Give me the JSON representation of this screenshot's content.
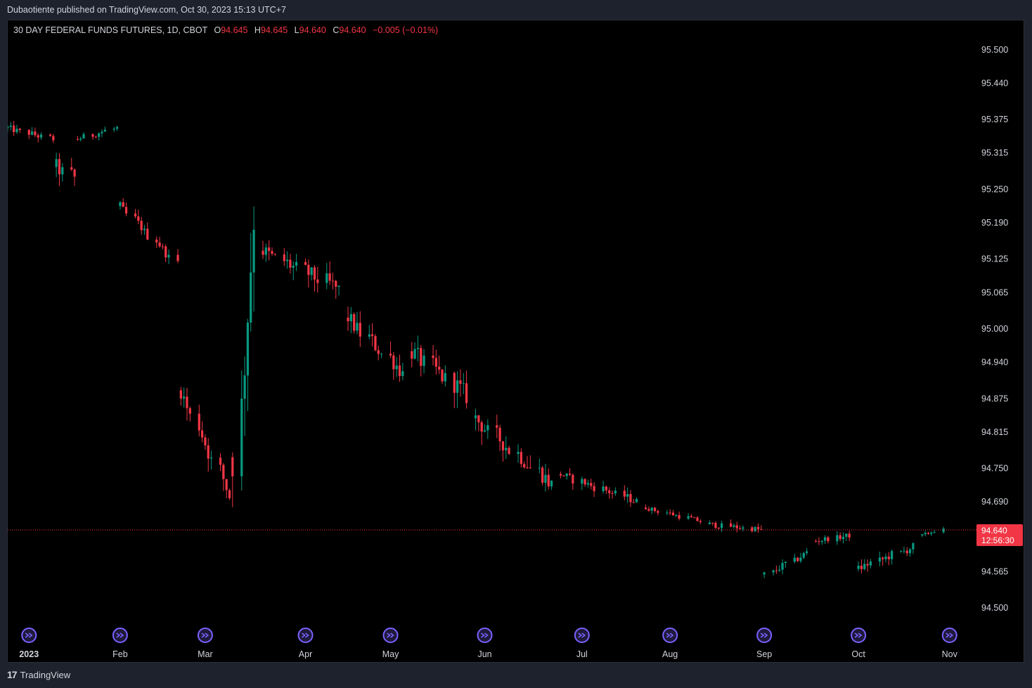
{
  "header": {
    "published_line": "Dubaotiente published on TradingView.com, Oct 30, 2023 15:13 UTC+7"
  },
  "legend": {
    "symbol": "30 DAY FEDERAL FUNDS FUTURES, 1D, CBOT",
    "open_label": "O",
    "open": "94.645",
    "high_label": "H",
    "high": "94.645",
    "low_label": "L",
    "low": "94.640",
    "close_label": "C",
    "close": "94.640",
    "change": "−0.005 (−0.01%)"
  },
  "price_badge": {
    "price": "94.640",
    "countdown": "12:56:30"
  },
  "footer": {
    "logo_glyph": "17",
    "brand": "TradingView"
  },
  "colors": {
    "up": "#089981",
    "down": "#f23645",
    "background": "#000000",
    "axis_text": "#d1d4dc",
    "event_icon": "#7b61ff"
  },
  "chart_data": {
    "type": "candlestick",
    "timeframe": "1D",
    "y_ticks": [
      "95.500",
      "95.440",
      "95.375",
      "95.315",
      "95.250",
      "95.190",
      "95.125",
      "95.065",
      "95.000",
      "94.940",
      "94.875",
      "94.815",
      "94.750",
      "94.690",
      "94.565",
      "94.500"
    ],
    "ylim": [
      94.47,
      95.54
    ],
    "x_ticks": [
      {
        "label": "2023",
        "date": "2023-01-02"
      },
      {
        "label": "Feb",
        "date": "2023-02-01"
      },
      {
        "label": "Mar",
        "date": "2023-03-01"
      },
      {
        "label": "Apr",
        "date": "2023-04-03"
      },
      {
        "label": "May",
        "date": "2023-05-01"
      },
      {
        "label": "Jun",
        "date": "2023-06-01"
      },
      {
        "label": "Jul",
        "date": "2023-07-03"
      },
      {
        "label": "Aug",
        "date": "2023-08-01"
      },
      {
        "label": "Sep",
        "date": "2023-09-01"
      },
      {
        "label": "Oct",
        "date": "2023-10-02"
      },
      {
        "label": "Nov",
        "date": "2023-11-01"
      }
    ],
    "x_range": [
      "2022-12-26",
      "2023-11-08"
    ],
    "event_icons_on": [
      "2023-01-02",
      "2023-02-01",
      "2023-03-01",
      "2023-04-03",
      "2023-05-01",
      "2023-06-01",
      "2023-07-03",
      "2023-08-01",
      "2023-09-01",
      "2023-10-02",
      "2023-11-01"
    ],
    "last_price": 94.64,
    "segments": [
      {
        "start": "2022-12-26",
        "end": "2023-01-10",
        "from": 95.36,
        "to": 95.34,
        "noise": 0.012
      },
      {
        "start": "2023-01-11",
        "end": "2023-01-17",
        "from": 95.29,
        "to": 95.27,
        "noise": 0.03
      },
      {
        "start": "2023-01-18",
        "end": "2023-01-31",
        "from": 95.34,
        "to": 95.36,
        "noise": 0.01
      },
      {
        "start": "2023-02-01",
        "end": "2023-02-20",
        "from": 95.22,
        "to": 95.12,
        "noise": 0.015
      },
      {
        "start": "2023-02-21",
        "end": "2023-03-09",
        "from": 94.89,
        "to": 94.7,
        "noise": 0.03
      },
      {
        "start": "2023-03-10",
        "end": "2023-03-17",
        "from": 94.77,
        "to": 95.2,
        "noise": 0.09
      },
      {
        "start": "2023-03-20",
        "end": "2023-04-14",
        "from": 95.14,
        "to": 95.07,
        "noise": 0.03
      },
      {
        "start": "2023-04-17",
        "end": "2023-05-05",
        "from": 95.02,
        "to": 94.92,
        "noise": 0.03
      },
      {
        "start": "2023-05-08",
        "end": "2023-05-26",
        "from": 94.96,
        "to": 94.88,
        "noise": 0.035
      },
      {
        "start": "2023-05-29",
        "end": "2023-06-23",
        "from": 94.84,
        "to": 94.72,
        "noise": 0.03
      },
      {
        "start": "2023-06-26",
        "end": "2023-07-21",
        "from": 94.74,
        "to": 94.69,
        "noise": 0.015
      },
      {
        "start": "2023-07-24",
        "end": "2023-08-11",
        "from": 94.68,
        "to": 94.655,
        "noise": 0.008
      },
      {
        "start": "2023-08-14",
        "end": "2023-08-31",
        "from": 94.65,
        "to": 94.64,
        "noise": 0.01
      },
      {
        "start": "2023-09-01",
        "end": "2023-09-15",
        "from": 94.56,
        "to": 94.6,
        "noise": 0.012
      },
      {
        "start": "2023-09-18",
        "end": "2023-09-29",
        "from": 94.62,
        "to": 94.63,
        "noise": 0.01
      },
      {
        "start": "2023-10-02",
        "end": "2023-10-20",
        "from": 94.57,
        "to": 94.61,
        "noise": 0.015
      },
      {
        "start": "2023-10-23",
        "end": "2023-10-30",
        "from": 94.63,
        "to": 94.64,
        "noise": 0.006
      }
    ]
  }
}
